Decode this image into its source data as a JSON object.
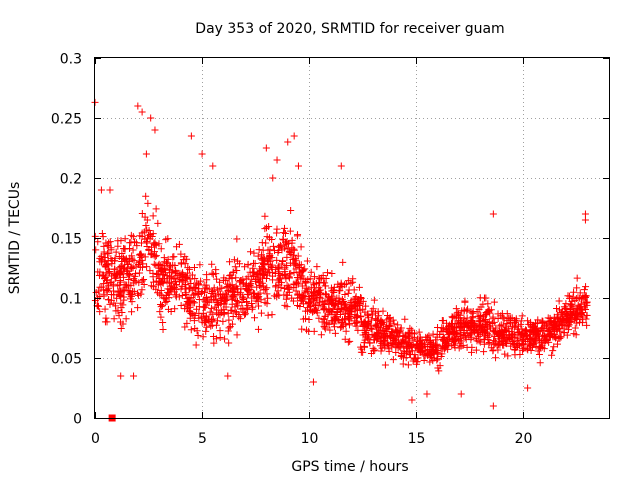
{
  "chart_data": {
    "type": "scatter",
    "title": "Day 353 of 2020, SRMTID for receiver guam",
    "xlabel": "GPS time / hours",
    "ylabel": "SRMTID / TECUs",
    "xlim": [
      0,
      24
    ],
    "ylim": [
      0,
      0.3
    ],
    "xticks": [
      0,
      5,
      10,
      15,
      20
    ],
    "xtick_labels": [
      "0",
      "5",
      "10",
      "15",
      "20"
    ],
    "yticks": [
      0,
      0.05,
      0.1,
      0.15,
      0.2,
      0.25,
      0.3
    ],
    "ytick_labels": [
      "0",
      "0.05",
      "0.1",
      "0.15",
      "0.2",
      "0.25",
      "0.3"
    ],
    "grid": true,
    "marker": "+",
    "series_color": "#ff0000",
    "trend": [
      [
        0.0,
        0.12,
        0.045
      ],
      [
        1.0,
        0.115,
        0.04
      ],
      [
        2.0,
        0.125,
        0.045
      ],
      [
        2.5,
        0.145,
        0.05
      ],
      [
        3.0,
        0.12,
        0.04
      ],
      [
        4.0,
        0.11,
        0.035
      ],
      [
        5.0,
        0.095,
        0.04
      ],
      [
        6.0,
        0.095,
        0.035
      ],
      [
        7.0,
        0.105,
        0.035
      ],
      [
        8.0,
        0.125,
        0.045
      ],
      [
        9.0,
        0.13,
        0.05
      ],
      [
        10.0,
        0.1,
        0.035
      ],
      [
        11.0,
        0.095,
        0.03
      ],
      [
        12.0,
        0.09,
        0.03
      ],
      [
        13.0,
        0.075,
        0.025
      ],
      [
        14.0,
        0.068,
        0.02
      ],
      [
        15.0,
        0.058,
        0.018
      ],
      [
        16.0,
        0.06,
        0.02
      ],
      [
        17.0,
        0.075,
        0.022
      ],
      [
        18.0,
        0.078,
        0.024
      ],
      [
        19.0,
        0.072,
        0.022
      ],
      [
        20.0,
        0.068,
        0.02
      ],
      [
        21.0,
        0.07,
        0.02
      ],
      [
        22.0,
        0.085,
        0.022
      ],
      [
        23.0,
        0.095,
        0.025
      ]
    ],
    "outliers": [
      [
        0.0,
        0.263
      ],
      [
        0.3,
        0.19
      ],
      [
        0.7,
        0.19
      ],
      [
        2.0,
        0.26
      ],
      [
        2.2,
        0.255
      ],
      [
        2.6,
        0.25
      ],
      [
        2.8,
        0.24
      ],
      [
        2.4,
        0.22
      ],
      [
        4.5,
        0.235
      ],
      [
        5.0,
        0.22
      ],
      [
        5.5,
        0.21
      ],
      [
        8.0,
        0.225
      ],
      [
        8.3,
        0.2
      ],
      [
        9.0,
        0.23
      ],
      [
        9.3,
        0.235
      ],
      [
        9.5,
        0.21
      ],
      [
        8.5,
        0.215
      ],
      [
        11.5,
        0.21
      ],
      [
        18.6,
        0.01
      ],
      [
        18.6,
        0.17
      ],
      [
        22.9,
        0.17
      ],
      [
        22.9,
        0.165
      ],
      [
        1.2,
        0.035
      ],
      [
        1.8,
        0.035
      ],
      [
        6.2,
        0.035
      ],
      [
        10.2,
        0.03
      ],
      [
        14.8,
        0.015
      ],
      [
        15.5,
        0.02
      ],
      [
        17.1,
        0.02
      ],
      [
        20.2,
        0.025
      ]
    ],
    "n_points": 2300,
    "special_markers": [
      {
        "x": 0.8,
        "y": 0.0,
        "shape": "square"
      }
    ]
  }
}
